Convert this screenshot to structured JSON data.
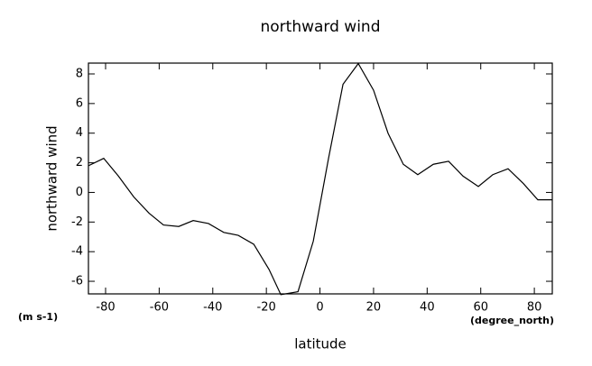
{
  "chart_data": {
    "type": "line",
    "title": "northward wind",
    "y_label": "northward wind",
    "x_label": "latitude",
    "y_unit": "(m s-1)",
    "x_unit": "(degree_north)",
    "x": [
      -86.4,
      -80.7,
      -75.2,
      -69.5,
      -63.8,
      -58.4,
      -52.7,
      -47.3,
      -41.6,
      -35.9,
      -30.5,
      -24.7,
      -19.0,
      -14.6,
      -8.2,
      -2.5,
      3.2,
      8.6,
      14.3,
      20.0,
      25.4,
      31.1,
      36.5,
      42.3,
      48.0,
      53.4,
      59.1,
      64.5,
      70.2,
      75.9,
      81.3,
      86.7
    ],
    "series": [
      {
        "name": "northward wind",
        "color": "#000000",
        "values": [
          1.8,
          2.3,
          1.1,
          -0.3,
          -1.4,
          -2.2,
          -2.3,
          -1.9,
          -2.1,
          -2.7,
          -2.9,
          -3.5,
          -5.2,
          -6.9,
          -6.7,
          -3.3,
          2.3,
          7.3,
          8.7,
          6.9,
          4.0,
          1.9,
          1.2,
          1.9,
          2.1,
          1.1,
          0.4,
          1.2,
          1.6,
          0.6,
          -0.5,
          -0.5
        ]
      }
    ],
    "xlim": [
      -86.4,
      86.7
    ],
    "ylim": [
      -6.85,
      8.73
    ],
    "xticks": [
      -80,
      -60,
      -40,
      -20,
      0,
      20,
      40,
      60,
      80
    ],
    "yticks": [
      -6,
      -4,
      -2,
      0,
      2,
      4,
      6,
      8
    ]
  }
}
